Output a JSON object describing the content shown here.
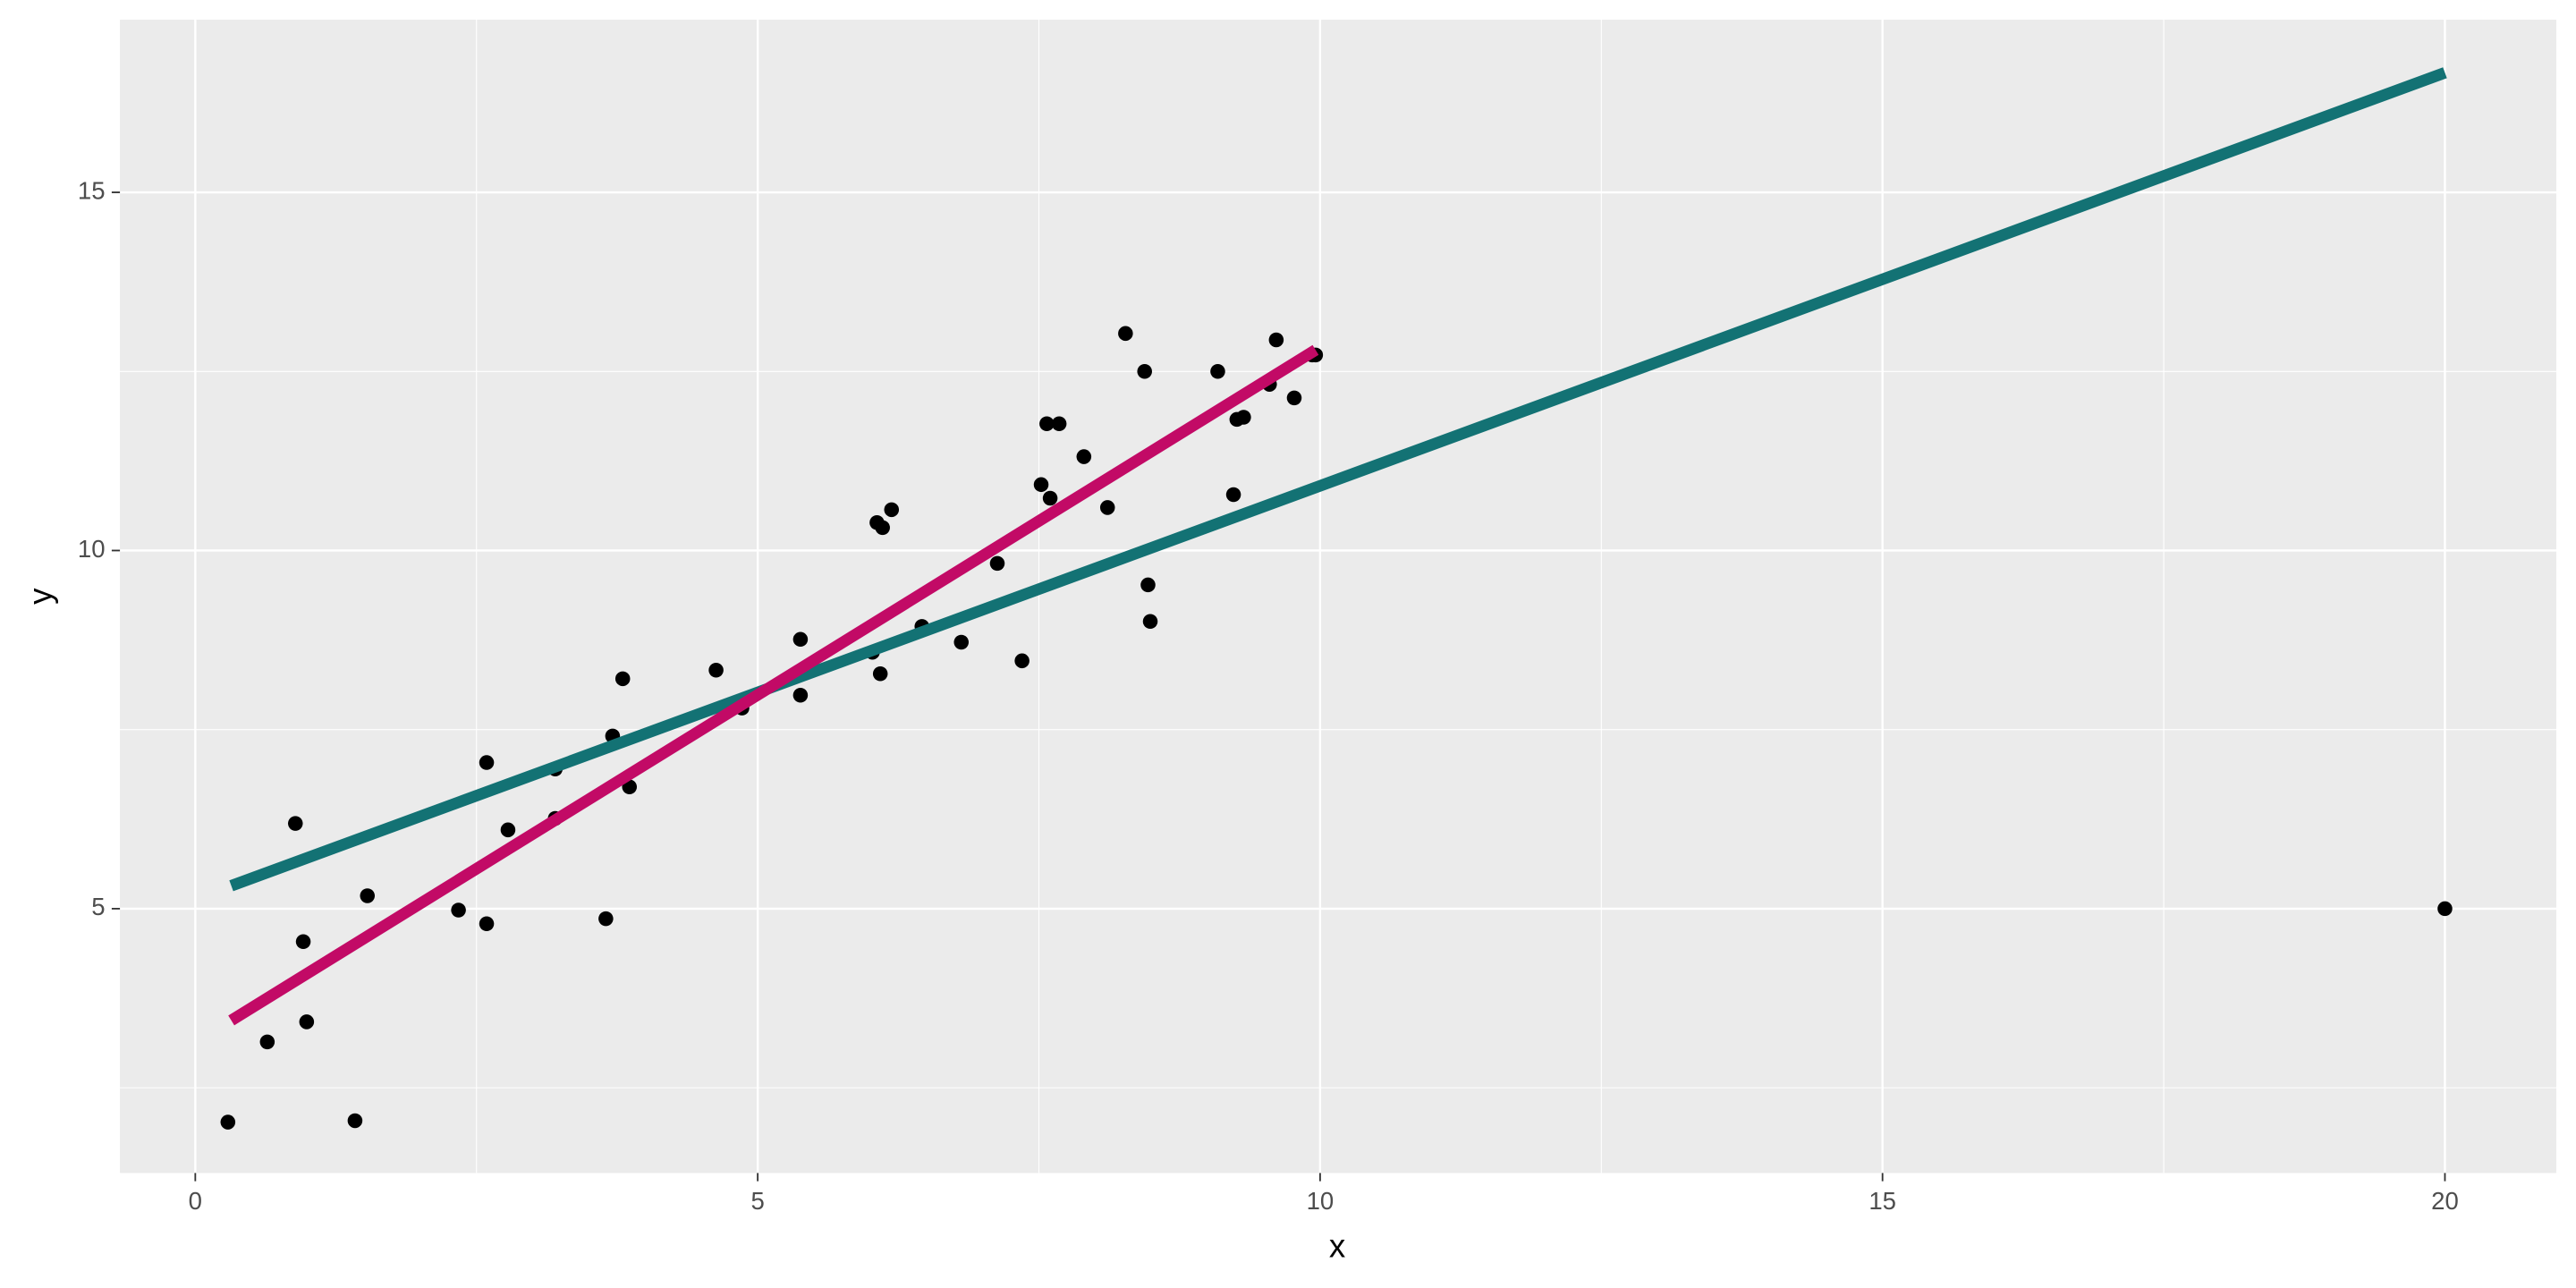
{
  "chart_data": {
    "type": "scatter",
    "x_label": "x",
    "y_label": "y",
    "xlim": [
      -0.67,
      20.99
    ],
    "ylim": [
      1.31,
      17.41
    ],
    "xticks": [
      0,
      5,
      10,
      15,
      20
    ],
    "yticks": [
      5,
      10,
      15
    ],
    "grid": true,
    "point_color": "#000000",
    "x": [
      0.29,
      0.64,
      0.89,
      0.96,
      0.99,
      1.42,
      1.53,
      2.34,
      2.59,
      2.59,
      2.78,
      3.2,
      3.2,
      3.65,
      3.71,
      3.8,
      3.86,
      4.63,
      4.86,
      5.38,
      5.38,
      6.02,
      6.06,
      6.11,
      6.09,
      6.19,
      6.46,
      6.81,
      7.13,
      7.35,
      7.52,
      7.57,
      7.6,
      7.68,
      7.9,
      8.11,
      8.27,
      8.44,
      8.47,
      8.49,
      9.09,
      9.23,
      9.26,
      9.32,
      9.55,
      9.61,
      9.77,
      9.93,
      9.96,
      20
    ],
    "y": [
      2.02,
      3.14,
      6.19,
      4.54,
      3.42,
      2.04,
      5.18,
      4.98,
      7.04,
      4.79,
      6.1,
      6.95,
      6.26,
      4.86,
      7.41,
      8.21,
      6.7,
      8.33,
      7.8,
      8.76,
      7.98,
      8.58,
      10.39,
      10.32,
      8.28,
      10.57,
      8.94,
      8.72,
      9.82,
      8.46,
      10.92,
      11.77,
      10.73,
      11.77,
      11.31,
      10.6,
      13.03,
      12.5,
      9.52,
      9.01,
      12.5,
      10.78,
      11.83,
      11.86,
      12.32,
      12.94,
      12.13,
      12.73,
      12.73,
      5
    ],
    "lines": [
      {
        "color": "#137274",
        "x": [
          0.32,
          20
        ],
        "y": [
          5.32,
          16.67
        ]
      },
      {
        "color": "#c20a66",
        "x": [
          0.32,
          9.96
        ],
        "y": [
          3.44,
          12.8
        ]
      }
    ]
  }
}
